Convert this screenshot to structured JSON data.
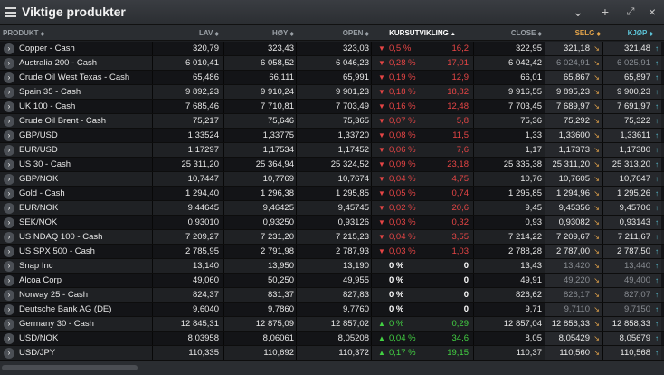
{
  "window": {
    "title": "Viktige produkter"
  },
  "header": {
    "produkt": "PRODUKT",
    "lav": "LAV",
    "hoy": "HØY",
    "open": "OPEN",
    "kursutvikling": "KURSUTVIKLING",
    "close": "CLOSE",
    "selg": "SELG",
    "kjop": "KJØP"
  },
  "colors": {
    "down": "#e64545",
    "up": "#43d143",
    "selg": "#e2a34a",
    "kjop": "#5cc2d6"
  },
  "rows": [
    {
      "name": "Copper - Cash",
      "lav": "320,79",
      "hoy": "323,43",
      "open": "323,03",
      "dir": "down",
      "pct": "0,5 %",
      "chg": "16,2",
      "close": "322,95",
      "selg": "321,18",
      "kjop": "321,48",
      "dim": false,
      "sd": "dn",
      "kd": "up"
    },
    {
      "name": "Australia 200 - Cash",
      "lav": "6 010,41",
      "hoy": "6 058,52",
      "open": "6 046,23",
      "dir": "down",
      "pct": "0,28 %",
      "chg": "17,01",
      "close": "6 042,42",
      "selg": "6 024,91",
      "kjop": "6 025,91",
      "dim": true,
      "sd": "dn",
      "kd": "up"
    },
    {
      "name": "Crude Oil West Texas - Cash",
      "lav": "65,486",
      "hoy": "66,111",
      "open": "65,991",
      "dir": "down",
      "pct": "0,19 %",
      "chg": "12,9",
      "close": "66,01",
      "selg": "65,867",
      "kjop": "65,897",
      "dim": false,
      "sd": "dn",
      "kd": "up"
    },
    {
      "name": "Spain 35 - Cash",
      "lav": "9 892,23",
      "hoy": "9 910,24",
      "open": "9 901,23",
      "dir": "down",
      "pct": "0,18 %",
      "chg": "18,82",
      "close": "9 916,55",
      "selg": "9 895,23",
      "kjop": "9 900,23",
      "dim": false,
      "sd": "dn",
      "kd": "up"
    },
    {
      "name": "UK 100 - Cash",
      "lav": "7 685,46",
      "hoy": "7 710,81",
      "open": "7 703,49",
      "dir": "down",
      "pct": "0,16 %",
      "chg": "12,48",
      "close": "7 703,45",
      "selg": "7 689,97",
      "kjop": "7 691,97",
      "dim": false,
      "sd": "dn",
      "kd": "up"
    },
    {
      "name": "Crude Oil Brent - Cash",
      "lav": "75,217",
      "hoy": "75,646",
      "open": "75,365",
      "dir": "down",
      "pct": "0,07 %",
      "chg": "5,8",
      "close": "75,36",
      "selg": "75,292",
      "kjop": "75,322",
      "dim": false,
      "sd": "dn",
      "kd": "up"
    },
    {
      "name": "GBP/USD",
      "lav": "1,33524",
      "hoy": "1,33775",
      "open": "1,33720",
      "dir": "down",
      "pct": "0,08 %",
      "chg": "11,5",
      "close": "1,33",
      "selg": "1,33600",
      "kjop": "1,33611",
      "dim": false,
      "sd": "dn",
      "kd": "up"
    },
    {
      "name": "EUR/USD",
      "lav": "1,17297",
      "hoy": "1,17534",
      "open": "1,17452",
      "dir": "down",
      "pct": "0,06 %",
      "chg": "7,6",
      "close": "1,17",
      "selg": "1,17373",
      "kjop": "1,17380",
      "dim": false,
      "sd": "dn",
      "kd": "up"
    },
    {
      "name": "US 30 - Cash",
      "lav": "25 311,20",
      "hoy": "25 364,94",
      "open": "25 324,52",
      "dir": "down",
      "pct": "0,09 %",
      "chg": "23,18",
      "close": "25 335,38",
      "selg": "25 311,20",
      "kjop": "25 313,20",
      "dim": false,
      "sd": "dn",
      "kd": "up"
    },
    {
      "name": "GBP/NOK",
      "lav": "10,7447",
      "hoy": "10,7769",
      "open": "10,7674",
      "dir": "down",
      "pct": "0,04 %",
      "chg": "4,75",
      "close": "10,76",
      "selg": "10,7605",
      "kjop": "10,7647",
      "dim": false,
      "sd": "dn",
      "kd": "up"
    },
    {
      "name": "Gold - Cash",
      "lav": "1 294,40",
      "hoy": "1 296,38",
      "open": "1 295,85",
      "dir": "down",
      "pct": "0,05 %",
      "chg": "0,74",
      "close": "1 295,85",
      "selg": "1 294,96",
      "kjop": "1 295,26",
      "dim": false,
      "sd": "dn",
      "kd": "up"
    },
    {
      "name": "EUR/NOK",
      "lav": "9,44645",
      "hoy": "9,46425",
      "open": "9,45745",
      "dir": "down",
      "pct": "0,02 %",
      "chg": "20,6",
      "close": "9,45",
      "selg": "9,45356",
      "kjop": "9,45706",
      "dim": false,
      "sd": "dn",
      "kd": "up"
    },
    {
      "name": "SEK/NOK",
      "lav": "0,93010",
      "hoy": "0,93250",
      "open": "0,93126",
      "dir": "down",
      "pct": "0,03 %",
      "chg": "0,32",
      "close": "0,93",
      "selg": "0,93082",
      "kjop": "0,93143",
      "dim": false,
      "sd": "dn",
      "kd": "up"
    },
    {
      "name": "US NDAQ 100 - Cash",
      "lav": "7 209,27",
      "hoy": "7 231,20",
      "open": "7 215,23",
      "dir": "down",
      "pct": "0,04 %",
      "chg": "3,55",
      "close": "7 214,22",
      "selg": "7 209,67",
      "kjop": "7 211,67",
      "dim": false,
      "sd": "dn",
      "kd": "up"
    },
    {
      "name": "US SPX 500 - Cash",
      "lav": "2 785,95",
      "hoy": "2 791,98",
      "open": "2 787,93",
      "dir": "down",
      "pct": "0,03 %",
      "chg": "1,03",
      "close": "2 788,28",
      "selg": "2 787,00",
      "kjop": "2 787,50",
      "dim": false,
      "sd": "dn",
      "kd": "up"
    },
    {
      "name": "Snap Inc",
      "lav": "13,140",
      "hoy": "13,950",
      "open": "13,190",
      "dir": "flat",
      "pct": "0 %",
      "chg": "0",
      "close": "13,43",
      "selg": "13,420",
      "kjop": "13,440",
      "dim": true,
      "sd": "dn",
      "kd": "up"
    },
    {
      "name": "Alcoa Corp",
      "lav": "49,060",
      "hoy": "50,250",
      "open": "49,955",
      "dir": "flat",
      "pct": "0 %",
      "chg": "0",
      "close": "49,91",
      "selg": "49,220",
      "kjop": "49,400",
      "dim": true,
      "sd": "dn",
      "kd": "up"
    },
    {
      "name": "Norway 25 - Cash",
      "lav": "824,37",
      "hoy": "831,37",
      "open": "827,83",
      "dir": "flat",
      "pct": "0 %",
      "chg": "0",
      "close": "826,62",
      "selg": "826,17",
      "kjop": "827,07",
      "dim": true,
      "sd": "dn",
      "kd": "up"
    },
    {
      "name": "Deutsche Bank AG (DE)",
      "lav": "9,6040",
      "hoy": "9,7860",
      "open": "9,7760",
      "dir": "flat",
      "pct": "0 %",
      "chg": "0",
      "close": "9,71",
      "selg": "9,7110",
      "kjop": "9,7150",
      "dim": true,
      "sd": "dn",
      "kd": "up"
    },
    {
      "name": "Germany 30 - Cash",
      "lav": "12 845,31",
      "hoy": "12 875,09",
      "open": "12 857,02",
      "dir": "up",
      "pct": "0 %",
      "chg": "0,29",
      "close": "12 857,04",
      "selg": "12 856,33",
      "kjop": "12 858,33",
      "dim": false,
      "sd": "dn",
      "kd": "up"
    },
    {
      "name": "USD/NOK",
      "lav": "8,03958",
      "hoy": "8,06061",
      "open": "8,05208",
      "dir": "up",
      "pct": "0,04 %",
      "chg": "34,6",
      "close": "8,05",
      "selg": "8,05429",
      "kjop": "8,05679",
      "dim": false,
      "sd": "dn",
      "kd": "up"
    },
    {
      "name": "USD/JPY",
      "lav": "110,335",
      "hoy": "110,692",
      "open": "110,372",
      "dir": "up",
      "pct": "0,17 %",
      "chg": "19,15",
      "close": "110,37",
      "selg": "110,560",
      "kjop": "110,568",
      "dim": false,
      "sd": "dn",
      "kd": "up"
    }
  ]
}
